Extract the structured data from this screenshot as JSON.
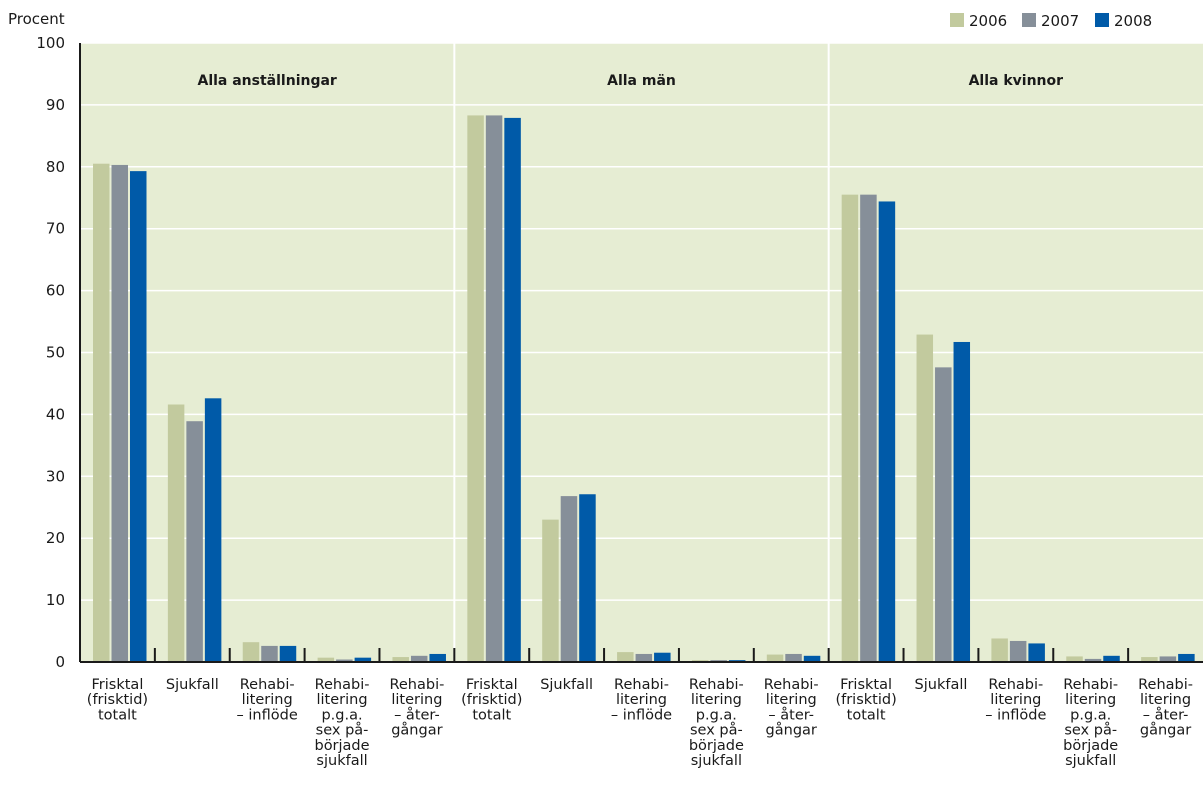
{
  "chart_data": {
    "type": "bar",
    "ylabel": "Procent",
    "ylim": [
      0,
      100
    ],
    "yticks": [
      0,
      10,
      20,
      30,
      40,
      50,
      60,
      70,
      80,
      90,
      100
    ],
    "grid": true,
    "legend_position": "top-right",
    "series": [
      {
        "name": "2006",
        "color": "#c2ca9e"
      },
      {
        "name": "2007",
        "color": "#868f99"
      },
      {
        "name": "2008",
        "color": "#005aa8"
      }
    ],
    "categories": [
      [
        "Frisktal",
        "(frisktid)",
        "totalt"
      ],
      [
        "Sjukfall"
      ],
      [
        "Rehabi-",
        "litering",
        "– inflöde"
      ],
      [
        "Rehabi-",
        "litering",
        "p.g.a.",
        "sex på-",
        "började",
        "sjukfall"
      ],
      [
        "Rehabi-",
        "litering",
        "– åter-",
        "gångar"
      ]
    ],
    "panels": [
      {
        "title": "Alla anställningar",
        "values": [
          [
            80.5,
            80.3,
            79.3
          ],
          [
            41.6,
            38.9,
            42.6
          ],
          [
            3.2,
            2.6,
            2.6
          ],
          [
            0.7,
            0.4,
            0.7
          ],
          [
            0.8,
            1.0,
            1.3
          ]
        ]
      },
      {
        "title": "Alla män",
        "values": [
          [
            88.3,
            88.3,
            87.9
          ],
          [
            23.0,
            26.8,
            27.1
          ],
          [
            1.6,
            1.3,
            1.5
          ],
          [
            0.3,
            0.3,
            0.3
          ],
          [
            1.2,
            1.3,
            1.0
          ]
        ]
      },
      {
        "title": "Alla kvinnor",
        "values": [
          [
            75.5,
            75.5,
            74.4
          ],
          [
            52.9,
            47.6,
            51.7
          ],
          [
            3.8,
            3.4,
            3.0
          ],
          [
            0.9,
            0.5,
            1.0
          ],
          [
            0.8,
            0.9,
            1.3
          ]
        ]
      }
    ]
  }
}
